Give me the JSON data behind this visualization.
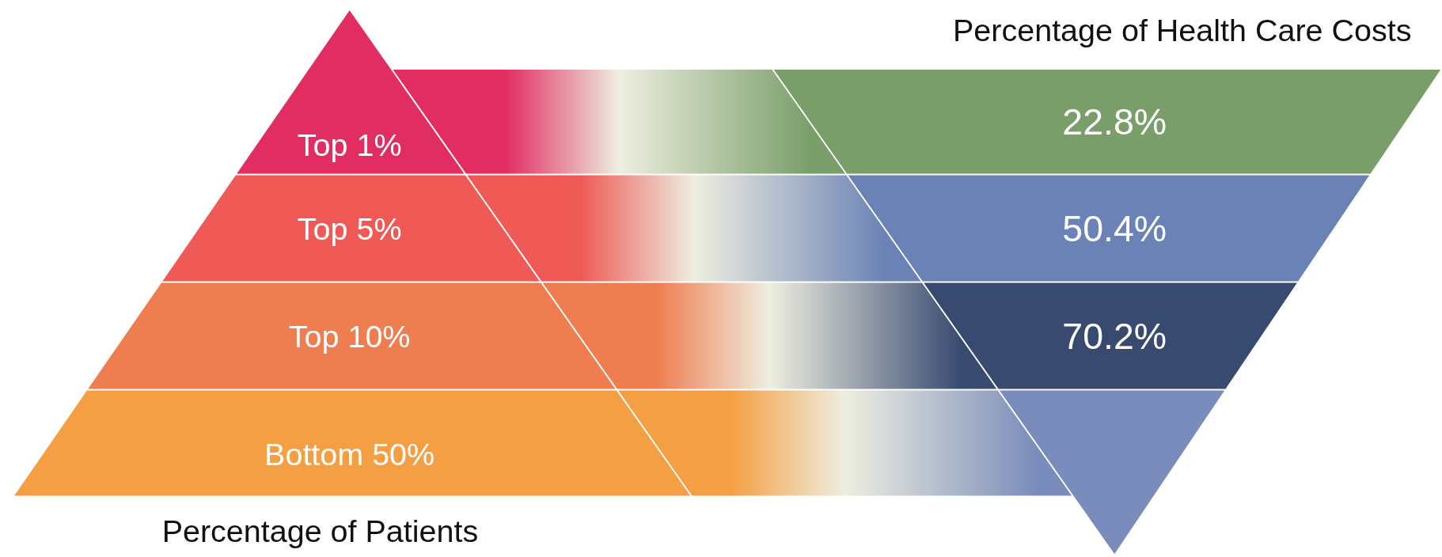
{
  "chart_data": {
    "type": "other",
    "categories": [
      "Top 1%",
      "Top 5%",
      "Top 10%",
      "Bottom 50%"
    ],
    "values": [
      22.8,
      50.4,
      70.2,
      null
    ],
    "value_labels": [
      "22.8%",
      "50.4%",
      "70.2%",
      null
    ],
    "annotations": [
      "Percentage of Health Care Costs",
      "Percentage of Patients"
    ]
  }
}
